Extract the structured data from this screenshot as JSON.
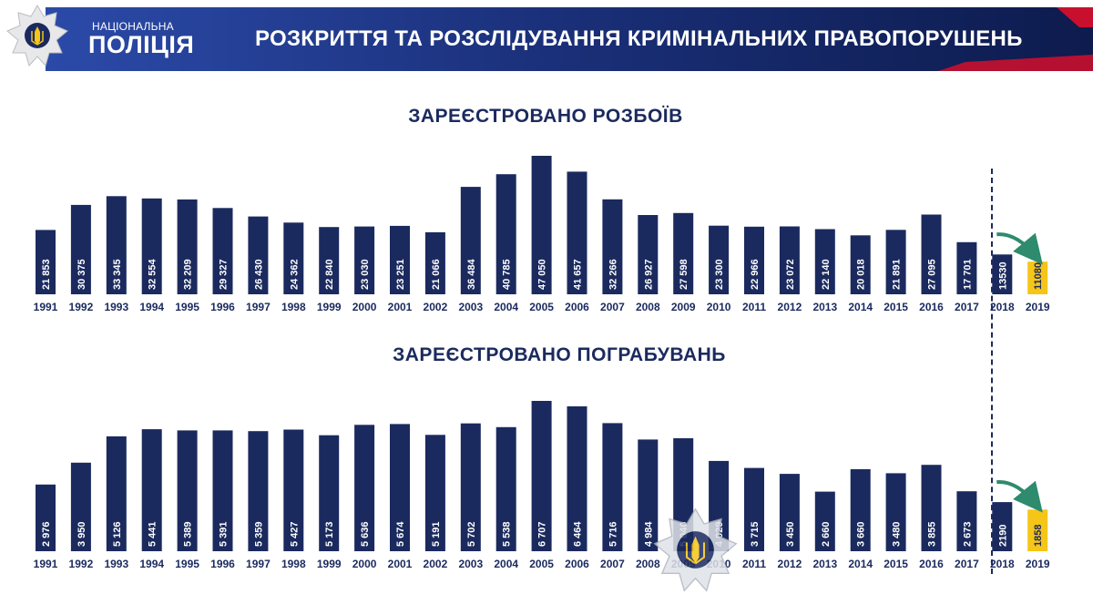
{
  "header": {
    "brand_top": "НАЦІОНАЛЬНА",
    "brand_main": "ПОЛІЦІЯ",
    "title": "РОЗКРИТТЯ ТА РОЗСЛІДУВАННЯ КРИМІНАЛЬНИХ ПРАВОПОРУШЕНЬ"
  },
  "colors": {
    "bar": "#1b2a5e",
    "highlight": "#f5c518",
    "arrow": "#2e8b6d",
    "header_left": "#1e3a8a",
    "header_right": "#0d1b4d",
    "accent_red": "#c8102e"
  },
  "chart_data": [
    {
      "type": "bar",
      "title": "ЗАРЕЄСТРОВАНО РОЗБОЇВ",
      "categories": [
        "1991",
        "1992",
        "1993",
        "1994",
        "1995",
        "1996",
        "1997",
        "1998",
        "1999",
        "2000",
        "2001",
        "2002",
        "2003",
        "2004",
        "2005",
        "2006",
        "2007",
        "2008",
        "2009",
        "2010",
        "2011",
        "2012",
        "2013",
        "2014",
        "2015",
        "2016",
        "2017",
        "2018",
        "2019"
      ],
      "values": [
        21853,
        30375,
        33345,
        32554,
        32209,
        29327,
        26430,
        24362,
        22840,
        23030,
        23251,
        21066,
        36484,
        40785,
        47050,
        41657,
        32266,
        26927,
        27598,
        23300,
        22966,
        23072,
        22140,
        20018,
        21891,
        27095,
        17701,
        13530,
        11080
      ],
      "value_labels": [
        "21 853",
        "30 375",
        "33 345",
        "32 554",
        "32 209",
        "29 327",
        "26 430",
        "24 362",
        "22 840",
        "23 030",
        "23 251",
        "21 066",
        "36 484",
        "40 785",
        "47 050",
        "41 657",
        "32 266",
        "26 927",
        "27 598",
        "23 300",
        "22 966",
        "23 072",
        "22 140",
        "20 018",
        "21 891",
        "27 095",
        "17 701",
        "13530",
        "11080"
      ],
      "highlight_index": 28,
      "ylim": [
        0,
        47050
      ]
    },
    {
      "type": "bar",
      "title": "ЗАРЕЄСТРОВАНО  ПОГРАБУВАНЬ",
      "categories": [
        "1991",
        "1992",
        "1993",
        "1994",
        "1995",
        "1996",
        "1997",
        "1998",
        "1999",
        "2000",
        "2001",
        "2002",
        "2003",
        "2004",
        "2005",
        "2006",
        "2007",
        "2008",
        "2009",
        "2010",
        "2011",
        "2012",
        "2013",
        "2014",
        "2015",
        "2016",
        "2017",
        "2018",
        "2019"
      ],
      "values": [
        2976,
        3950,
        5126,
        5441,
        5389,
        5391,
        5359,
        5427,
        5173,
        5636,
        5674,
        5191,
        5702,
        5538,
        6707,
        6464,
        5716,
        4984,
        5040,
        4029,
        3715,
        3450,
        2660,
        3660,
        3480,
        3855,
        2673,
        2190,
        1858
      ],
      "value_labels": [
        "2 976",
        "3 950",
        "5 126",
        "5 441",
        "5 389",
        "5 391",
        "5 359",
        "5 427",
        "5 173",
        "5 636",
        "5 674",
        "5 191",
        "5 702",
        "5 538",
        "6 707",
        "6 464",
        "5 716",
        "4 984",
        "5 040",
        "4 029",
        "3 715",
        "3 450",
        "2 660",
        "3 660",
        "3 480",
        "3 855",
        "2 673",
        "2190",
        "1858"
      ],
      "highlight_index": 28,
      "ylim": [
        0,
        6707
      ]
    }
  ]
}
